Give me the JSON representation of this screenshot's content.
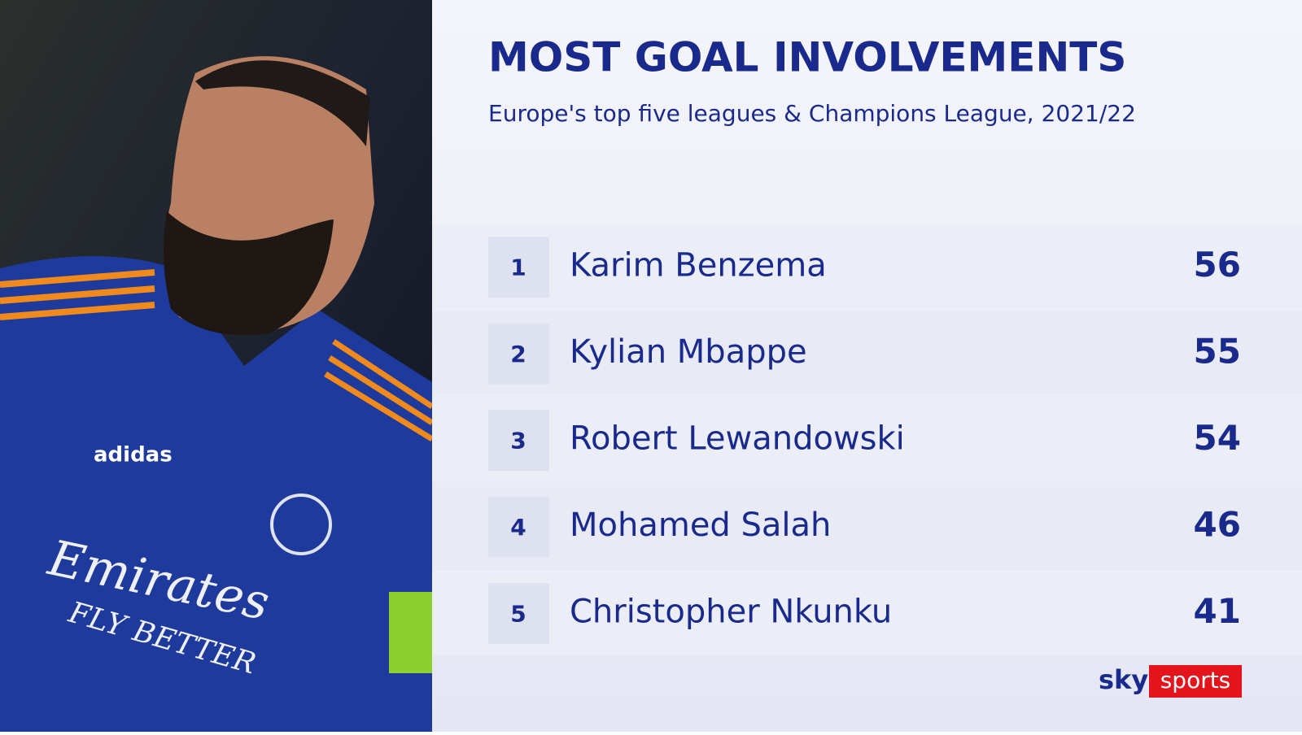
{
  "header": {
    "title": "MOST GOAL INVOLVEMENTS",
    "subtitle": "Europe's top five leagues & Champions League, 2021/22"
  },
  "table": {
    "rows": [
      [
        1,
        "Karim Benzema",
        56
      ],
      [
        2,
        "Kylian Mbappe",
        55
      ],
      [
        3,
        "Robert Lewandowski",
        54
      ],
      [
        4,
        "Mohamed Salah",
        46
      ],
      [
        5,
        "Christopher Nkunku",
        41
      ]
    ]
  },
  "photo": {
    "shirt_brand": "adidas",
    "sponsor": "Emirates",
    "sponsor_tagline": "FLY BETTER"
  },
  "logo": {
    "left": "sky",
    "right": "sports"
  }
}
